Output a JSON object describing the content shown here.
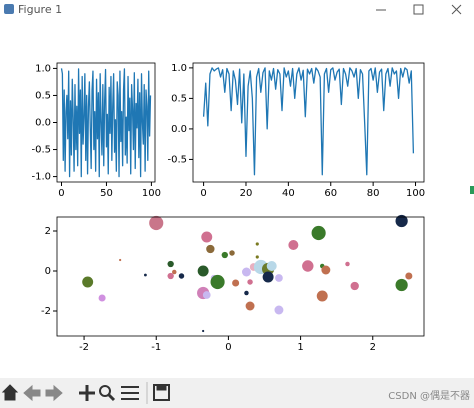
{
  "window": {
    "title": "Figure 1"
  },
  "watermark": "CSDN @偶是不器",
  "chart_data": [
    {
      "type": "line",
      "color": "#1f77b4",
      "x": [
        0,
        1,
        2,
        3,
        4,
        5,
        6,
        7,
        8,
        9,
        10,
        11,
        12,
        13,
        14,
        15,
        16,
        17,
        18,
        19,
        20,
        21,
        22,
        23,
        24,
        25,
        26,
        27,
        28,
        29,
        30,
        31,
        32,
        33,
        34,
        35,
        36,
        37,
        38,
        39,
        40,
        41,
        42,
        43,
        44,
        45,
        46,
        47,
        48,
        49,
        50,
        51,
        52,
        53,
        54,
        55,
        56,
        57,
        58,
        59,
        60,
        61,
        62,
        63,
        64,
        65,
        66,
        67,
        68,
        69,
        70,
        71,
        72,
        73,
        74,
        75,
        76,
        77,
        78,
        79,
        80,
        81,
        82,
        83,
        84,
        85,
        86,
        87,
        88,
        89,
        90,
        91,
        92,
        93,
        94,
        95,
        96,
        97,
        98,
        99
      ],
      "values": [
        1.0,
        0.9,
        -0.7,
        0.6,
        -0.9,
        0.2,
        0.5,
        -0.3,
        0.95,
        -1.0,
        0.4,
        -0.6,
        0.8,
        0.1,
        -0.9,
        0.7,
        -0.5,
        0.3,
        -0.8,
        0.99,
        -0.2,
        0.6,
        -1.0,
        0.85,
        -0.4,
        0.1,
        0.9,
        -0.7,
        0.5,
        -0.95,
        0.3,
        0.75,
        -0.1,
        -0.85,
        0.6,
        0.95,
        -0.5,
        0.2,
        -0.9,
        0.8,
        -0.3,
        0.55,
        -1.0,
        0.9,
        0.0,
        -0.6,
        0.7,
        -0.8,
        0.4,
        0.98,
        -0.45,
        0.15,
        -0.95,
        0.65,
        -0.2,
        0.85,
        -0.7,
        0.3,
        0.9,
        -0.55,
        0.05,
        -0.9,
        0.75,
        0.5,
        -1.0,
        0.95,
        -0.35,
        0.2,
        -0.8,
        0.6,
        0.99,
        -0.6,
        0.1,
        -0.75,
        0.85,
        -0.15,
        0.45,
        -0.95,
        0.7,
        0.25,
        -0.5,
        0.92,
        -0.85,
        0.35,
        -0.1,
        0.8,
        -0.65,
        0.55,
        -1.0,
        0.9,
        0.0,
        -0.4,
        0.7,
        -0.9,
        0.6,
        0.3,
        -0.7,
        0.95,
        -0.25,
        0.5
      ],
      "xlim": [
        -5,
        104
      ],
      "xticks": [
        0,
        50,
        100
      ],
      "ylim": [
        -1.1,
        1.1
      ],
      "yticks": [
        {
          "value": 1,
          "label": "1.0"
        },
        0.5,
        {
          "value": 0,
          "label": "0.0"
        },
        -0.5,
        {
          "value": -1,
          "label": "-1.0"
        }
      ]
    },
    {
      "type": "line",
      "color": "#1f77b4",
      "x": [
        0,
        1,
        2,
        3,
        4,
        5,
        6,
        7,
        8,
        9,
        10,
        11,
        12,
        13,
        14,
        15,
        16,
        17,
        18,
        19,
        20,
        21,
        22,
        23,
        24,
        25,
        26,
        27,
        28,
        29,
        30,
        31,
        32,
        33,
        34,
        35,
        36,
        37,
        38,
        39,
        40,
        41,
        42,
        43,
        44,
        45,
        46,
        47,
        48,
        49,
        50,
        51,
        52,
        53,
        54,
        55,
        56,
        57,
        58,
        59,
        60,
        61,
        62,
        63,
        64,
        65,
        66,
        67,
        68,
        69,
        70,
        71,
        72,
        73,
        74,
        75,
        76,
        77,
        78,
        79,
        80,
        81,
        82,
        83,
        84,
        85,
        86,
        87,
        88,
        89,
        90,
        91,
        92,
        93,
        94,
        95,
        96,
        97,
        98,
        99
      ],
      "values": [
        0.2,
        0.75,
        0.05,
        0.9,
        1.0,
        0.95,
        0.98,
        1.0,
        0.85,
        0.97,
        0.6,
        0.99,
        0.9,
        0.3,
        0.95,
        0.8,
        0.4,
        0.98,
        0.1,
        0.9,
        -0.45,
        0.7,
        0.95,
        0.5,
        -0.75,
        0.85,
        0.99,
        0.6,
        0.92,
        1.0,
        0.0,
        0.95,
        0.8,
        0.99,
        0.65,
        0.97,
        0.9,
        0.3,
        1.0,
        0.85,
        0.95,
        0.7,
        0.99,
        0.5,
        0.9,
        1.0,
        0.8,
        0.96,
        0.2,
        0.98,
        0.9,
        0.99,
        0.75,
        1.0,
        0.95,
        0.85,
        -0.75,
        0.9,
        0.99,
        0.6,
        0.97,
        1.0,
        0.8,
        0.93,
        0.98,
        0.4,
        0.99,
        0.9,
        0.7,
        1.0,
        0.95,
        0.85,
        0.99,
        0.5,
        0.97,
        0.9,
        0.1,
        -0.75,
        0.95,
        0.99,
        0.8,
        1.0,
        0.6,
        0.93,
        0.98,
        0.3,
        0.9,
        0.99,
        0.7,
        1.0,
        0.9,
        0.95,
        0.5,
        0.99,
        0.85,
        1.0,
        0.97,
        0.75,
        0.95,
        -0.4
      ],
      "xlim": [
        -5,
        104
      ],
      "xticks": [
        0,
        20,
        40,
        60,
        80,
        100
      ],
      "ylim": [
        -0.87,
        1.08
      ],
      "yticks": [
        {
          "value": 1,
          "label": "1.0"
        },
        0.5,
        {
          "value": 0,
          "label": "0.0"
        },
        -0.5
      ]
    },
    {
      "type": "scatter",
      "x": [
        -1.0,
        2.4,
        1.25,
        -0.3,
        0.9,
        -0.25,
        0.05,
        -0.05,
        0.4,
        -0.8,
        1.1,
        1.3,
        -0.35,
        0.35,
        0.45,
        0.55,
        0.25,
        0.6,
        1.35,
        1.65,
        2.5,
        -1.95,
        -0.75,
        -0.8,
        -0.65,
        -0.2,
        0.55,
        0.7,
        -0.15,
        0.1,
        0.3,
        1.75,
        -0.35,
        -0.3,
        0.25,
        1.3,
        2.4,
        -1.75,
        0.3,
        0.7,
        -1.5,
        -1.15,
        -0.35,
        0.4
      ],
      "values": [
        2.4,
        2.5,
        1.9,
        1.7,
        1.3,
        1.1,
        0.9,
        0.8,
        0.7,
        0.35,
        0.25,
        0.25,
        0.0,
        0.2,
        0.2,
        0.1,
        -0.05,
        0.25,
        0.05,
        0.35,
        -0.25,
        -0.55,
        -0.05,
        -0.25,
        -0.25,
        -0.35,
        -0.3,
        -0.35,
        -0.55,
        -0.6,
        -0.55,
        -0.75,
        -1.1,
        -1.2,
        -1.1,
        -1.25,
        -0.7,
        -1.35,
        -1.75,
        -1.95,
        0.55,
        -0.2,
        -3.0,
        1.35
      ],
      "sizes": [
        200,
        150,
        200,
        120,
        100,
        70,
        30,
        40,
        10,
        40,
        130,
        20,
        120,
        60,
        200,
        150,
        80,
        100,
        80,
        20,
        50,
        120,
        20,
        40,
        30,
        40,
        120,
        60,
        200,
        50,
        30,
        70,
        150,
        60,
        20,
        120,
        150,
        50,
        80,
        80,
        5,
        8,
        5,
        10
      ],
      "colors": [
        "#c9768a",
        "#16294a",
        "#3a7a2a",
        "#d07090",
        "#d07090",
        "#8b6a3a",
        "#8b6a3a",
        "#3a7a2a",
        "#7a7a20",
        "#2a5a2a",
        "#d07090",
        "#3a7a2a",
        "#2a5a2a",
        "#e8b0c0",
        "#b8d8e8",
        "#6a7a2a",
        "#c8b8f0",
        "#b8d8e8",
        "#c07050",
        "#d07090",
        "#c07050",
        "#5a7a2a",
        "#c07050",
        "#d07090",
        "#16294a",
        "#c8b8f0",
        "#16294a",
        "#c8b8f0",
        "#3a7a2a",
        "#c07050",
        "#d07090",
        "#d07090",
        "#d080b8",
        "#c8b8f0",
        "#16294a",
        "#c07050",
        "#3a7a2a",
        "#d090e0",
        "#c07050",
        "#c8b8f0",
        "#c07050",
        "#16294a",
        "#16294a",
        "#7a7a20"
      ],
      "xlim": [
        -2.375,
        2.71
      ],
      "xticks": [
        -2,
        -1,
        0,
        1,
        2
      ],
      "ylim": [
        -3.25,
        2.7
      ],
      "yticks": [
        2,
        0,
        -2
      ]
    }
  ]
}
